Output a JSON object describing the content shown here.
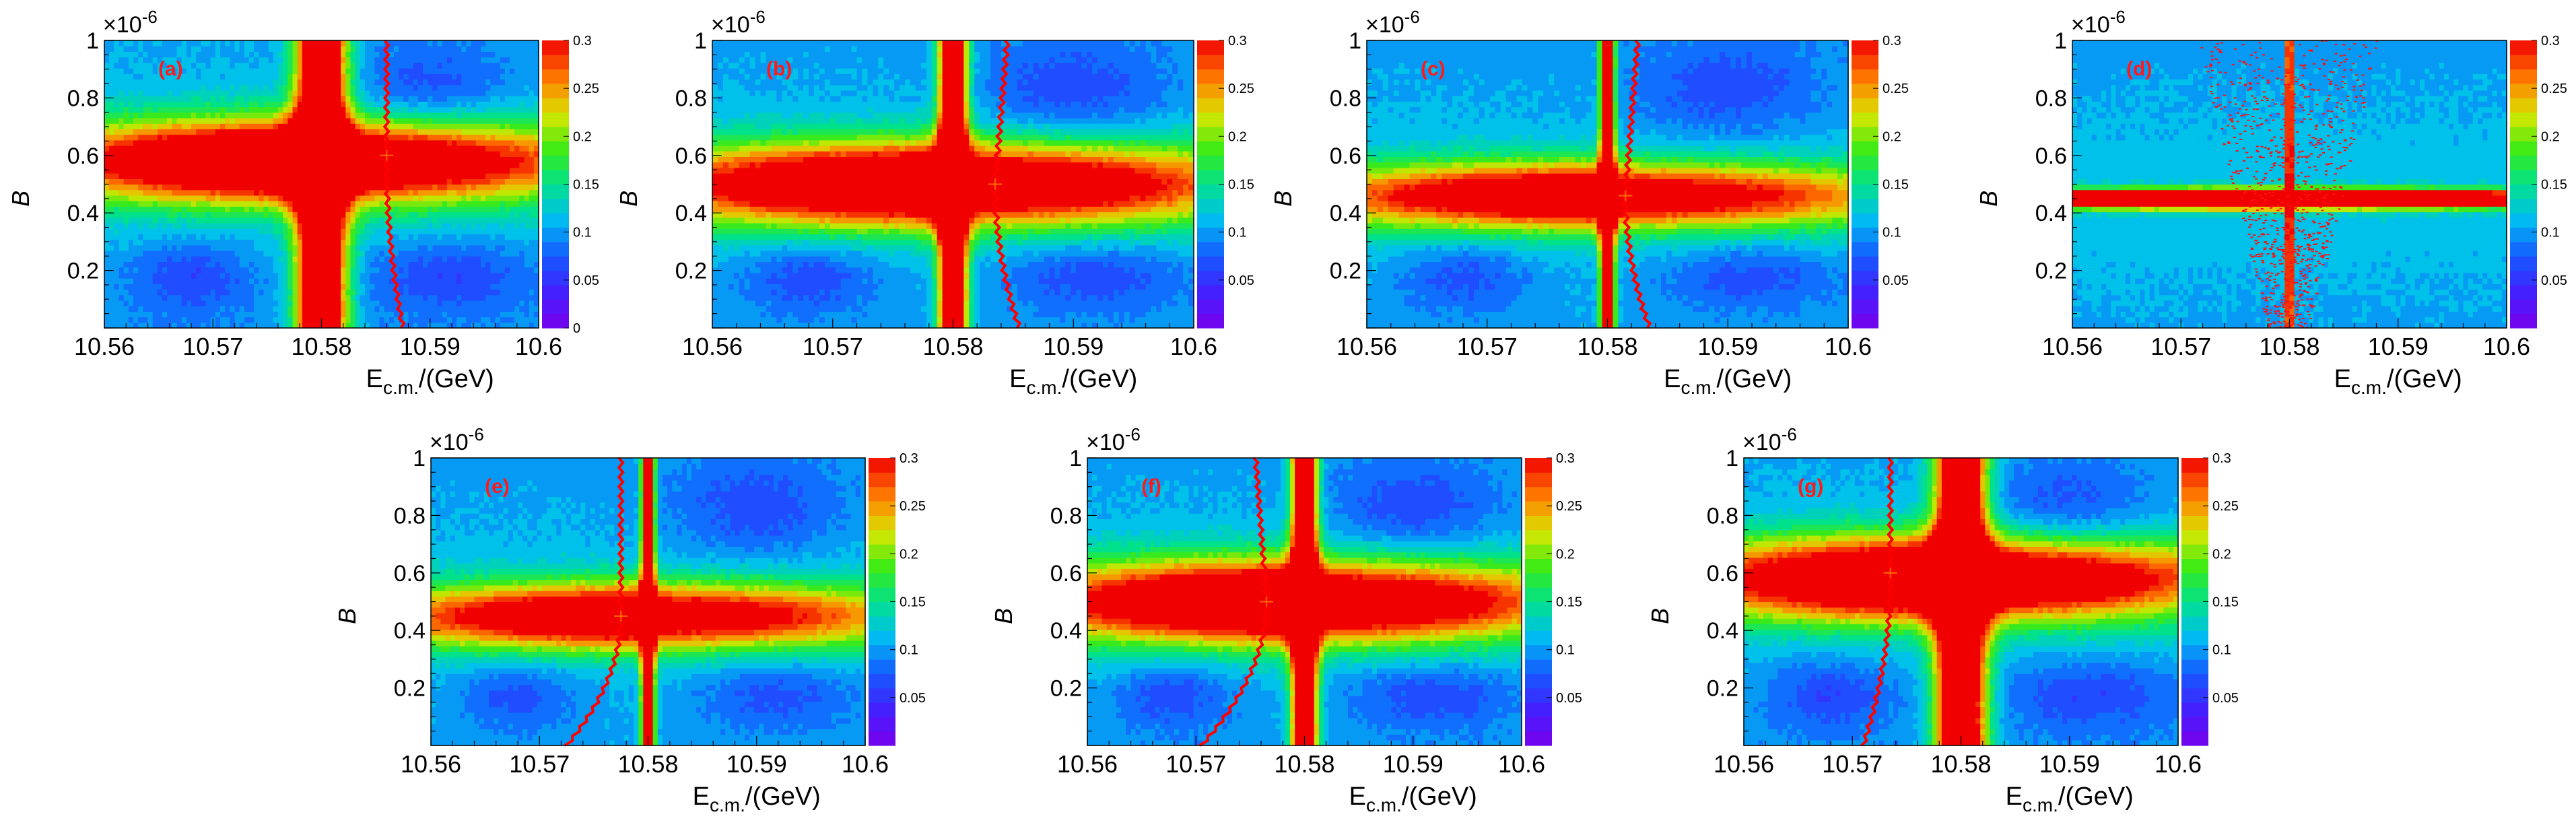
{
  "chart_data": [
    {
      "type": "heatmap",
      "panel_label": "(a)",
      "x_tick_labels": [
        "10.56",
        "10.57",
        "10.58",
        "10.59",
        "10.6"
      ],
      "y_tick_labels": [
        "0.2",
        "0.4",
        "0.6",
        "0.8",
        "1"
      ],
      "axis_multiplier": "×10",
      "axis_multiplier_exp": "-6",
      "xlabel_main": "E",
      "xlabel_sub": "c.m.",
      "xlabel_tail": "/(GeV)",
      "ylabel": "B",
      "xlim": [
        10.56,
        10.6
      ],
      "ylim": [
        0,
        1.0
      ],
      "colorbar_range": [
        0,
        0.3
      ],
      "colorbar_tick_labels": [
        "0",
        "0.05",
        "0.1",
        "0.15",
        "0.2",
        "0.25",
        "0.3"
      ],
      "resonance_center": 10.58,
      "resonance_width": 0.0016,
      "band_y": 0.58,
      "band_strength": 0.33,
      "band_width": 0.1,
      "dip_strength": 0.75,
      "red_line": {
        "x_at_top": 10.586,
        "x_at_bottom": 10.5875,
        "x_at_band": 10.586
      },
      "crossing": {
        "x": 10.586,
        "y": 0.6
      }
    },
    {
      "type": "heatmap",
      "panel_label": "(b)",
      "x_tick_labels": [
        "10.56",
        "10.57",
        "10.58",
        "10.59",
        "10.6"
      ],
      "y_tick_labels": [
        "0.2",
        "0.4",
        "0.6",
        "0.8",
        "1"
      ],
      "axis_multiplier": "×10",
      "axis_multiplier_exp": "-6",
      "xlabel_main": "E",
      "xlabel_sub": "c.m.",
      "xlabel_tail": "/(GeV)",
      "ylabel": "B",
      "xlim": [
        10.56,
        10.6
      ],
      "ylim": [
        0,
        1.0
      ],
      "colorbar_range": [
        0,
        0.3
      ],
      "colorbar_tick_labels": [
        "0.05",
        "0.1",
        "0.15",
        "0.2",
        "0.25",
        "0.3"
      ],
      "resonance_center": 10.58,
      "resonance_width": 0.0008,
      "band_y": 0.5,
      "band_strength": 0.32,
      "band_width": 0.1,
      "dip_strength": 0.75,
      "red_line": {
        "x_at_top": 10.5845,
        "x_at_bottom": 10.5855,
        "x_at_band": 10.5835
      },
      "crossing": {
        "x": 10.5835,
        "y": 0.5
      }
    },
    {
      "type": "heatmap",
      "panel_label": "(c)",
      "x_tick_labels": [
        "10.56",
        "10.57",
        "10.58",
        "10.59",
        "10.6"
      ],
      "y_tick_labels": [
        "0.2",
        "0.4",
        "0.6",
        "0.8",
        "1"
      ],
      "axis_multiplier": "×10",
      "axis_multiplier_exp": "-6",
      "xlabel_main": "E",
      "xlabel_sub": "c.m.",
      "xlabel_tail": "/(GeV)",
      "ylabel": "B",
      "xlim": [
        10.56,
        10.6
      ],
      "ylim": [
        0,
        1.0
      ],
      "colorbar_range": [
        0,
        0.3
      ],
      "colorbar_tick_labels": [
        "0.05",
        "0.1",
        "0.15",
        "0.2",
        "0.25",
        "0.3"
      ],
      "resonance_center": 10.58,
      "resonance_width": 0.0004,
      "band_y": 0.46,
      "band_strength": 0.27,
      "band_width": 0.08,
      "dip_strength": 0.7,
      "red_line": {
        "x_at_top": 10.5825,
        "x_at_bottom": 10.5835,
        "x_at_band": 10.5815
      },
      "crossing": {
        "x": 10.5815,
        "y": 0.46
      }
    },
    {
      "type": "heatmap",
      "panel_label": "(d)",
      "x_tick_labels": [
        "10.56",
        "10.57",
        "10.58",
        "10.59",
        "10.6"
      ],
      "y_tick_labels": [
        "0.2",
        "0.4",
        "0.6",
        "0.8",
        "1"
      ],
      "axis_multiplier": "×10",
      "axis_multiplier_exp": "-6",
      "xlabel_main": "E",
      "xlabel_sub": "c.m.",
      "xlabel_tail": "/(GeV)",
      "ylabel": "B",
      "xlim": [
        10.56,
        10.6
      ],
      "ylim": [
        0,
        1.0
      ],
      "colorbar_range": [
        0,
        0.3
      ],
      "colorbar_tick_labels": [
        "0.05",
        "0.1",
        "0.15",
        "0.2",
        "0.25",
        "0.3"
      ],
      "resonance_center": 10.58,
      "resonance_width": 0.0002,
      "band_y": 0.45,
      "band_strength": 0.6,
      "band_width": 0.02,
      "dip_strength": 0.0,
      "red_line": null,
      "crossing": null
    },
    {
      "type": "heatmap",
      "panel_label": "(e)",
      "x_tick_labels": [
        "10.56",
        "10.57",
        "10.58",
        "10.59",
        "10.6"
      ],
      "y_tick_labels": [
        "0.2",
        "0.4",
        "0.6",
        "0.8",
        "1"
      ],
      "axis_multiplier": "×10",
      "axis_multiplier_exp": "-6",
      "xlabel_main": "E",
      "xlabel_sub": "c.m.",
      "xlabel_tail": "/(GeV)",
      "ylabel": "B",
      "xlim": [
        10.56,
        10.6
      ],
      "ylim": [
        0,
        1.0
      ],
      "colorbar_range": [
        0,
        0.3
      ],
      "colorbar_tick_labels": [
        "0.05",
        "0.1",
        "0.15",
        "0.2",
        "0.25",
        "0.3"
      ],
      "resonance_center": 10.58,
      "resonance_width": 0.0004,
      "band_y": 0.45,
      "band_strength": 0.27,
      "band_width": 0.08,
      "dip_strength": 0.7,
      "red_line": {
        "x_at_top": 10.5775,
        "x_at_bottom": 10.5725,
        "x_at_band": 10.5775
      },
      "crossing": {
        "x": 10.5775,
        "y": 0.45
      }
    },
    {
      "type": "heatmap",
      "panel_label": "(f)",
      "x_tick_labels": [
        "10.56",
        "10.57",
        "10.58",
        "10.59",
        "10.6"
      ],
      "y_tick_labels": [
        "0.2",
        "0.4",
        "0.6",
        "0.8",
        "1"
      ],
      "axis_multiplier": "×10",
      "axis_multiplier_exp": "-6",
      "xlabel_main": "E",
      "xlabel_sub": "c.m.",
      "xlabel_tail": "/(GeV)",
      "ylabel": "B",
      "xlim": [
        10.56,
        10.6
      ],
      "ylim": [
        0,
        1.0
      ],
      "colorbar_range": [
        0,
        0.3
      ],
      "colorbar_tick_labels": [
        "0.05",
        "0.1",
        "0.15",
        "0.2",
        "0.25",
        "0.3"
      ],
      "resonance_center": 10.58,
      "resonance_width": 0.0008,
      "band_y": 0.5,
      "band_strength": 0.32,
      "band_width": 0.1,
      "dip_strength": 0.75,
      "red_line": {
        "x_at_top": 10.5755,
        "x_at_bottom": 10.5705,
        "x_at_band": 10.5765
      },
      "crossing": {
        "x": 10.5765,
        "y": 0.5
      }
    },
    {
      "type": "heatmap",
      "panel_label": "(g)",
      "x_tick_labels": [
        "10.56",
        "10.57",
        "10.58",
        "10.59",
        "10.6"
      ],
      "y_tick_labels": [
        "0.2",
        "0.4",
        "0.6",
        "0.8",
        "1"
      ],
      "axis_multiplier": "×10",
      "axis_multiplier_exp": "-6",
      "xlabel_main": "E",
      "xlabel_sub": "c.m.",
      "xlabel_tail": "/(GeV)",
      "ylabel": "B",
      "xlim": [
        10.56,
        10.6
      ],
      "ylim": [
        0,
        1.0
      ],
      "colorbar_range": [
        0,
        0.3
      ],
      "colorbar_tick_labels": [
        "0.05",
        "0.1",
        "0.15",
        "0.2",
        "0.25",
        "0.3"
      ],
      "resonance_center": 10.58,
      "resonance_width": 0.0016,
      "band_y": 0.58,
      "band_strength": 0.33,
      "band_width": 0.1,
      "dip_strength": 0.75,
      "red_line": {
        "x_at_top": 10.5735,
        "x_at_bottom": 10.571,
        "x_at_band": 10.5735
      },
      "crossing": {
        "x": 10.5735,
        "y": 0.6
      }
    }
  ]
}
